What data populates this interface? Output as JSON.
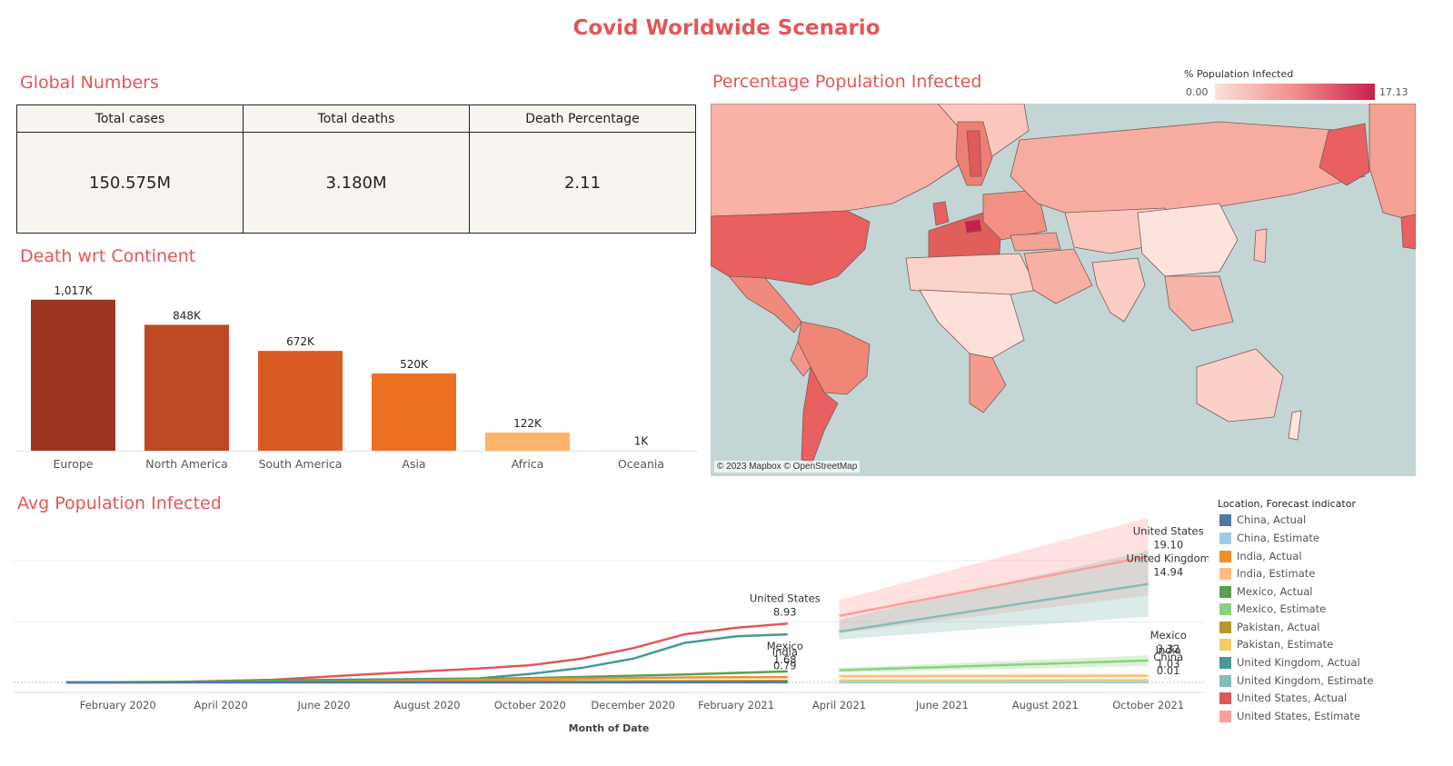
{
  "title": "Covid Worldwide Scenario",
  "global": {
    "title": "Global Numbers",
    "headers": [
      "Total cases",
      "Total deaths",
      "Death Percentage"
    ],
    "values": [
      "150.575M",
      "3.180M",
      "2.11"
    ]
  },
  "death_title": "Death wrt Continent",
  "map": {
    "title": "Percentage Population Infected",
    "legend_title": "% Population Infected",
    "min_label": "0.00",
    "max_label": "17.13",
    "credit": "© 2023 Mapbox © OpenStreetMap"
  },
  "avg_title": "Avg Population Infected",
  "legend": {
    "title": "Location, Forecast indicator",
    "items": [
      {
        "label": "China, Actual",
        "color": "#4e79a7"
      },
      {
        "label": "China, Estimate",
        "color": "#a0cbe8"
      },
      {
        "label": "India, Actual",
        "color": "#f28e2b"
      },
      {
        "label": "India, Estimate",
        "color": "#ffbe7d"
      },
      {
        "label": "Mexico, Actual",
        "color": "#59a14f"
      },
      {
        "label": "Mexico, Estimate",
        "color": "#8cd17d"
      },
      {
        "label": "Pakistan, Actual",
        "color": "#b6992d"
      },
      {
        "label": "Pakistan, Estimate",
        "color": "#f1ce63"
      },
      {
        "label": "United Kingdom, Actual",
        "color": "#499894"
      },
      {
        "label": "United Kingdom, Estimate",
        "color": "#86bcb6"
      },
      {
        "label": "United States, Actual",
        "color": "#e15759"
      },
      {
        "label": "United States, Estimate",
        "color": "#ff9d9a"
      }
    ]
  },
  "chart_data": [
    {
      "type": "bar",
      "title": "Death wrt Continent",
      "categories": [
        "Europe",
        "North America",
        "South America",
        "Asia",
        "Africa",
        "Oceania"
      ],
      "values": [
        1017,
        848,
        672,
        520,
        122,
        1
      ],
      "labels": [
        "1,017K",
        "848K",
        "672K",
        "520K",
        "122K",
        "1K"
      ],
      "colors": [
        "#9c3622",
        "#bd4a22",
        "#d85b22",
        "#ec7022",
        "#fbb46a",
        "#fde0c8"
      ],
      "ylim": [
        0,
        1100
      ]
    },
    {
      "type": "line",
      "title": "Avg Population Infected",
      "xlabel": "Month of Date",
      "x_ticks": [
        "February 2020",
        "April 2020",
        "June 2020",
        "August 2020",
        "October 2020",
        "December 2020",
        "February 2021",
        "April 2021",
        "June 2021",
        "August 2021",
        "October 2021"
      ],
      "ylim": [
        0,
        21
      ],
      "series": [
        {
          "name": "United States, Actual",
          "color": "#e15759",
          "x": [
            "2020-01",
            "2020-03",
            "2020-05",
            "2020-07",
            "2020-09",
            "2020-10",
            "2020-11",
            "2020-12",
            "2021-01",
            "2021-02",
            "2021-03"
          ],
          "y": [
            0.0,
            0.06,
            0.4,
            1.3,
            2.1,
            2.6,
            3.6,
            5.2,
            7.3,
            8.3,
            8.93
          ]
        },
        {
          "name": "United Kingdom, Actual",
          "color": "#499894",
          "x": [
            "2020-01",
            "2020-03",
            "2020-05",
            "2020-07",
            "2020-09",
            "2020-10",
            "2020-11",
            "2020-12",
            "2021-01",
            "2021-02",
            "2021-03"
          ],
          "y": [
            0.0,
            0.03,
            0.3,
            0.45,
            0.6,
            1.3,
            2.2,
            3.6,
            6.0,
            7.0,
            7.3
          ]
        },
        {
          "name": "Mexico, Actual",
          "color": "#59a14f",
          "x": [
            "2020-01",
            "2020-06",
            "2020-10",
            "2021-01",
            "2021-03"
          ],
          "y": [
            0.0,
            0.2,
            0.65,
            1.2,
            1.68
          ]
        },
        {
          "name": "India, Actual",
          "color": "#f28e2b",
          "x": [
            "2020-01",
            "2020-06",
            "2020-10",
            "2021-01",
            "2021-03"
          ],
          "y": [
            0.0,
            0.05,
            0.5,
            0.75,
            0.79
          ]
        },
        {
          "name": "Pakistan, Actual",
          "color": "#b6992d",
          "x": [
            "2020-01",
            "2020-06",
            "2020-10",
            "2021-03"
          ],
          "y": [
            0.0,
            0.08,
            0.15,
            0.25
          ]
        },
        {
          "name": "China, Actual",
          "color": "#4e79a7",
          "x": [
            "2020-01",
            "2021-03"
          ],
          "y": [
            0.0,
            0.01
          ]
        },
        {
          "name": "United States, Estimate",
          "color": "#ff9d9a",
          "x": [
            "2021-04",
            "2021-10"
          ],
          "y": [
            10.1,
            19.1
          ],
          "band": [
            [
              7.5,
              12.5
            ],
            [
              13.2,
              25.0
            ]
          ]
        },
        {
          "name": "United Kingdom, Estimate",
          "color": "#86bcb6",
          "x": [
            "2021-04",
            "2021-10"
          ],
          "y": [
            7.7,
            14.94
          ],
          "band": [
            [
              6.5,
              9.5
            ],
            [
              10.0,
              20.0
            ]
          ]
        },
        {
          "name": "Mexico, Estimate",
          "color": "#8cd17d",
          "x": [
            "2021-04",
            "2021-10"
          ],
          "y": [
            1.85,
            3.32
          ],
          "band": [
            [
              1.5,
              2.2
            ],
            [
              2.5,
              4.1
            ]
          ]
        },
        {
          "name": "India, Estimate",
          "color": "#ffbe7d",
          "x": [
            "2021-04",
            "2021-10"
          ],
          "y": [
            0.95,
            1.03
          ],
          "band": [
            [
              0.7,
              1.2
            ],
            [
              0.75,
              1.3
            ]
          ]
        },
        {
          "name": "Pakistan, Estimate",
          "color": "#f1ce63",
          "x": [
            "2021-04",
            "2021-10"
          ],
          "y": [
            0.3,
            0.35
          ]
        },
        {
          "name": "China, Estimate",
          "color": "#a0cbe8",
          "x": [
            "2021-04",
            "2021-10"
          ],
          "y": [
            0.01,
            0.01
          ]
        }
      ],
      "annotations": [
        {
          "series": "United States, Actual",
          "label": "United States",
          "value": "8.93"
        },
        {
          "series": "India, Actual",
          "label": "India",
          "value": "0.79"
        },
        {
          "series": "Mexico, Actual",
          "label": "Mexico",
          "value": "1.68"
        },
        {
          "series": "United States, Estimate",
          "label": "United States",
          "value": "19.10"
        },
        {
          "series": "United Kingdom, Estimate",
          "label": "United Kingdom",
          "value": "14.94"
        },
        {
          "series": "Mexico, Estimate",
          "label": "Mexico",
          "value": "3.32"
        },
        {
          "series": "India, Estimate",
          "label": "India",
          "value": "1.03"
        },
        {
          "series": "China, Estimate",
          "label": "China",
          "value": "0.01"
        }
      ]
    }
  ]
}
